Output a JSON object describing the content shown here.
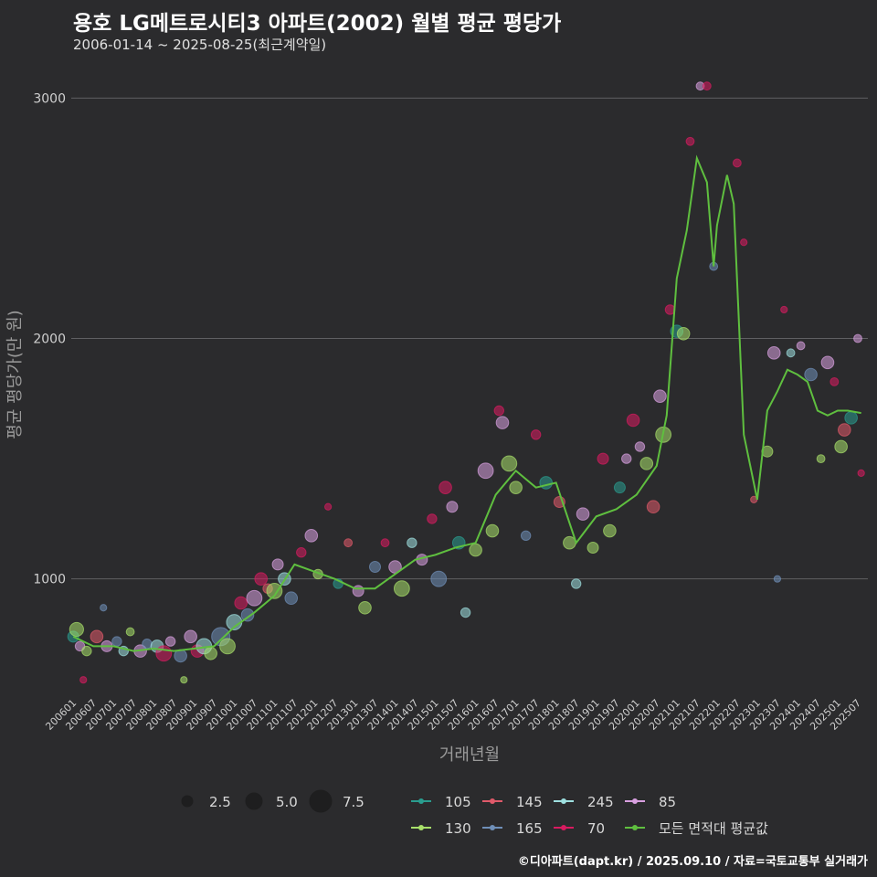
{
  "title": "용호 LG메트로시티3 아파트(2002) 월별 평균 평당가",
  "subtitle": "2006-01-14 ~ 2025-08-25(최근계약일)",
  "credit": "©디아파트(dapt.kr) / 2025.09.10 / 자료=국토교통부 실거래가",
  "chart_data": {
    "type": "scatter",
    "xlabel": "거래년월",
    "ylabel": "평균 평당가(만 원)",
    "ylim": [
      520,
      3180
    ],
    "yticks": [
      1000,
      2000,
      3000
    ],
    "grid": true,
    "legend_position": "bottom",
    "x_ticks": [
      "200601",
      "200607",
      "200701",
      "200707",
      "200801",
      "200807",
      "200901",
      "200907",
      "201001",
      "201007",
      "201101",
      "201107",
      "201201",
      "201207",
      "201301",
      "201307",
      "201401",
      "201407",
      "201501",
      "201507",
      "201601",
      "201607",
      "201701",
      "201707",
      "201801",
      "201807",
      "201901",
      "201907",
      "202001",
      "202007",
      "202101",
      "202107",
      "202201",
      "202207",
      "202301",
      "202307",
      "202401",
      "202407",
      "202501",
      "202507"
    ],
    "size_legend": [
      {
        "label": "2.5",
        "value": 2.5
      },
      {
        "label": "5.0",
        "value": 5.0
      },
      {
        "label": "7.5",
        "value": 7.5
      }
    ],
    "series": [
      {
        "name": "105",
        "color": "#2a9d8f"
      },
      {
        "name": "130",
        "color": "#a8e06a"
      },
      {
        "name": "145",
        "color": "#e05a6a"
      },
      {
        "name": "165",
        "color": "#6f8fb8"
      },
      {
        "name": "245",
        "color": "#9ee0e0"
      },
      {
        "name": "70",
        "color": "#d81b60"
      },
      {
        "name": "85",
        "color": "#d9a0e0"
      },
      {
        "name": "모든 면적대 평균값",
        "color": "#5fbf3f"
      }
    ],
    "average_line": {
      "x": [
        "2006-01",
        "2006-07",
        "2007-01",
        "2007-07",
        "2008-01",
        "2008-07",
        "2009-01",
        "2009-07",
        "2010-01",
        "2010-07",
        "2011-01",
        "2011-07",
        "2012-01",
        "2012-07",
        "2013-01",
        "2013-07",
        "2014-01",
        "2014-07",
        "2015-01",
        "2015-07",
        "2016-01",
        "2016-07",
        "2017-01",
        "2017-07",
        "2018-01",
        "2018-07",
        "2019-01",
        "2019-07",
        "2020-01",
        "2020-07",
        "2020-10",
        "2021-01",
        "2021-04",
        "2021-07",
        "2021-10",
        "2021-12",
        "2022-01",
        "2022-04",
        "2022-06",
        "2022-09",
        "2023-01",
        "2023-04",
        "2023-07",
        "2023-10",
        "2024-01",
        "2024-04",
        "2024-07",
        "2024-10",
        "2025-01",
        "2025-04",
        "2025-08"
      ],
      "y": [
        760,
        720,
        720,
        700,
        710,
        700,
        710,
        720,
        800,
        860,
        930,
        1060,
        1030,
        1000,
        960,
        960,
        1020,
        1080,
        1100,
        1130,
        1150,
        1350,
        1450,
        1380,
        1400,
        1150,
        1260,
        1290,
        1350,
        1470,
        1680,
        2250,
        2450,
        2750,
        2650,
        2300,
        2470,
        2680,
        2560,
        1600,
        1330,
        1700,
        1780,
        1870,
        1850,
        1820,
        1700,
        1680,
        1700,
        1700,
        1690
      ]
    },
    "points": [
      {
        "x": "2006-01",
        "y": 760,
        "s": "105",
        "v": 2.5
      },
      {
        "x": "2006-02",
        "y": 790,
        "s": "130",
        "v": 3.5
      },
      {
        "x": "2006-03",
        "y": 720,
        "s": "85",
        "v": 2.0
      },
      {
        "x": "2006-04",
        "y": 580,
        "s": "70",
        "v": 1.0
      },
      {
        "x": "2006-05",
        "y": 700,
        "s": "130",
        "v": 2.0
      },
      {
        "x": "2006-08",
        "y": 760,
        "s": "145",
        "v": 3.0
      },
      {
        "x": "2006-10",
        "y": 880,
        "s": "165",
        "v": 1.0
      },
      {
        "x": "2006-11",
        "y": 720,
        "s": "85",
        "v": 2.5
      },
      {
        "x": "2007-02",
        "y": 740,
        "s": "165",
        "v": 2.0
      },
      {
        "x": "2007-04",
        "y": 700,
        "s": "245",
        "v": 2.0
      },
      {
        "x": "2007-06",
        "y": 780,
        "s": "130",
        "v": 1.5
      },
      {
        "x": "2007-09",
        "y": 700,
        "s": "85",
        "v": 3.0
      },
      {
        "x": "2007-11",
        "y": 730,
        "s": "165",
        "v": 2.0
      },
      {
        "x": "2008-02",
        "y": 720,
        "s": "245",
        "v": 3.0
      },
      {
        "x": "2008-04",
        "y": 690,
        "s": "70",
        "v": 4.0
      },
      {
        "x": "2008-06",
        "y": 740,
        "s": "85",
        "v": 2.0
      },
      {
        "x": "2008-09",
        "y": 680,
        "s": "165",
        "v": 3.0
      },
      {
        "x": "2008-10",
        "y": 580,
        "s": "130",
        "v": 1.0
      },
      {
        "x": "2008-12",
        "y": 760,
        "s": "85",
        "v": 3.0
      },
      {
        "x": "2009-02",
        "y": 700,
        "s": "70",
        "v": 3.0
      },
      {
        "x": "2009-04",
        "y": 720,
        "s": "245",
        "v": 4.0
      },
      {
        "x": "2009-06",
        "y": 690,
        "s": "130",
        "v": 3.0
      },
      {
        "x": "2009-09",
        "y": 760,
        "s": "165",
        "v": 5.0
      },
      {
        "x": "2009-11",
        "y": 720,
        "s": "130",
        "v": 4.0
      },
      {
        "x": "2010-01",
        "y": 820,
        "s": "245",
        "v": 4.0
      },
      {
        "x": "2010-03",
        "y": 900,
        "s": "70",
        "v": 3.0
      },
      {
        "x": "2010-05",
        "y": 850,
        "s": "165",
        "v": 3.0
      },
      {
        "x": "2010-07",
        "y": 920,
        "s": "85",
        "v": 4.0
      },
      {
        "x": "2010-09",
        "y": 1000,
        "s": "70",
        "v": 3.0
      },
      {
        "x": "2010-11",
        "y": 960,
        "s": "145",
        "v": 2.0
      },
      {
        "x": "2011-01",
        "y": 950,
        "s": "130",
        "v": 4.0
      },
      {
        "x": "2011-02",
        "y": 1060,
        "s": "85",
        "v": 2.5
      },
      {
        "x": "2011-04",
        "y": 1000,
        "s": "245",
        "v": 3.0
      },
      {
        "x": "2011-06",
        "y": 920,
        "s": "165",
        "v": 3.0
      },
      {
        "x": "2011-09",
        "y": 1110,
        "s": "70",
        "v": 2.0
      },
      {
        "x": "2011-12",
        "y": 1180,
        "s": "85",
        "v": 3.0
      },
      {
        "x": "2012-02",
        "y": 1020,
        "s": "130",
        "v": 2.0
      },
      {
        "x": "2012-05",
        "y": 1300,
        "s": "70",
        "v": 1.0
      },
      {
        "x": "2012-08",
        "y": 980,
        "s": "105",
        "v": 2.0
      },
      {
        "x": "2012-11",
        "y": 1150,
        "s": "145",
        "v": 1.5
      },
      {
        "x": "2013-02",
        "y": 950,
        "s": "85",
        "v": 2.5
      },
      {
        "x": "2013-04",
        "y": 880,
        "s": "130",
        "v": 3.0
      },
      {
        "x": "2013-07",
        "y": 1050,
        "s": "165",
        "v": 2.5
      },
      {
        "x": "2013-10",
        "y": 1150,
        "s": "70",
        "v": 1.5
      },
      {
        "x": "2014-01",
        "y": 1050,
        "s": "85",
        "v": 3.0
      },
      {
        "x": "2014-03",
        "y": 960,
        "s": "130",
        "v": 4.0
      },
      {
        "x": "2014-06",
        "y": 1150,
        "s": "245",
        "v": 2.0
      },
      {
        "x": "2014-09",
        "y": 1080,
        "s": "85",
        "v": 2.5
      },
      {
        "x": "2014-12",
        "y": 1250,
        "s": "70",
        "v": 2.0
      },
      {
        "x": "2015-02",
        "y": 1000,
        "s": "165",
        "v": 4.0
      },
      {
        "x": "2015-04",
        "y": 1380,
        "s": "70",
        "v": 3.0
      },
      {
        "x": "2015-06",
        "y": 1300,
        "s": "85",
        "v": 2.5
      },
      {
        "x": "2015-08",
        "y": 1150,
        "s": "105",
        "v": 3.0
      },
      {
        "x": "2015-10",
        "y": 860,
        "s": "245",
        "v": 2.0
      },
      {
        "x": "2016-01",
        "y": 1120,
        "s": "130",
        "v": 3.0
      },
      {
        "x": "2016-04",
        "y": 1450,
        "s": "85",
        "v": 4.0
      },
      {
        "x": "2016-06",
        "y": 1200,
        "s": "130",
        "v": 3.0
      },
      {
        "x": "2016-08",
        "y": 1700,
        "s": "70",
        "v": 2.0
      },
      {
        "x": "2016-09",
        "y": 1650,
        "s": "85",
        "v": 3.0
      },
      {
        "x": "2016-11",
        "y": 1480,
        "s": "130",
        "v": 4.0
      },
      {
        "x": "2017-01",
        "y": 1380,
        "s": "130",
        "v": 3.0
      },
      {
        "x": "2017-04",
        "y": 1180,
        "s": "165",
        "v": 2.0
      },
      {
        "x": "2017-07",
        "y": 1600,
        "s": "70",
        "v": 2.0
      },
      {
        "x": "2017-10",
        "y": 1400,
        "s": "105",
        "v": 3.0
      },
      {
        "x": "2018-02",
        "y": 1320,
        "s": "145",
        "v": 2.5
      },
      {
        "x": "2018-05",
        "y": 1150,
        "s": "130",
        "v": 3.0
      },
      {
        "x": "2018-07",
        "y": 980,
        "s": "245",
        "v": 2.0
      },
      {
        "x": "2018-09",
        "y": 1270,
        "s": "85",
        "v": 3.0
      },
      {
        "x": "2018-12",
        "y": 1130,
        "s": "130",
        "v": 2.5
      },
      {
        "x": "2019-03",
        "y": 1500,
        "s": "70",
        "v": 2.5
      },
      {
        "x": "2019-05",
        "y": 1200,
        "s": "130",
        "v": 3.0
      },
      {
        "x": "2019-08",
        "y": 1380,
        "s": "105",
        "v": 2.5
      },
      {
        "x": "2019-10",
        "y": 1500,
        "s": "85",
        "v": 2.0
      },
      {
        "x": "2019-12",
        "y": 1660,
        "s": "70",
        "v": 3.0
      },
      {
        "x": "2020-02",
        "y": 1550,
        "s": "85",
        "v": 2.0
      },
      {
        "x": "2020-04",
        "y": 1480,
        "s": "130",
        "v": 3.0
      },
      {
        "x": "2020-06",
        "y": 1300,
        "s": "145",
        "v": 3.0
      },
      {
        "x": "2020-08",
        "y": 1760,
        "s": "85",
        "v": 3.0
      },
      {
        "x": "2020-09",
        "y": 1600,
        "s": "130",
        "v": 4.0
      },
      {
        "x": "2020-11",
        "y": 2120,
        "s": "70",
        "v": 2.0
      },
      {
        "x": "2021-01",
        "y": 2030,
        "s": "105",
        "v": 3.0
      },
      {
        "x": "2021-03",
        "y": 2020,
        "s": "130",
        "v": 3.0
      },
      {
        "x": "2021-05",
        "y": 2820,
        "s": "70",
        "v": 1.5
      },
      {
        "x": "2021-08",
        "y": 3050,
        "s": "85",
        "v": 1.5
      },
      {
        "x": "2021-10",
        "y": 3050,
        "s": "70",
        "v": 1.5
      },
      {
        "x": "2021-12",
        "y": 2300,
        "s": "165",
        "v": 1.5
      },
      {
        "x": "2022-07",
        "y": 2730,
        "s": "70",
        "v": 1.5
      },
      {
        "x": "2022-09",
        "y": 2400,
        "s": "70",
        "v": 1.0
      },
      {
        "x": "2022-12",
        "y": 1330,
        "s": "145",
        "v": 1.0
      },
      {
        "x": "2023-04",
        "y": 1530,
        "s": "130",
        "v": 2.5
      },
      {
        "x": "2023-06",
        "y": 1940,
        "s": "85",
        "v": 3.0
      },
      {
        "x": "2023-07",
        "y": 1000,
        "s": "165",
        "v": 1.0
      },
      {
        "x": "2023-09",
        "y": 2120,
        "s": "70",
        "v": 1.0
      },
      {
        "x": "2023-11",
        "y": 1940,
        "s": "245",
        "v": 1.5
      },
      {
        "x": "2024-02",
        "y": 1970,
        "s": "85",
        "v": 1.5
      },
      {
        "x": "2024-05",
        "y": 1850,
        "s": "165",
        "v": 3.0
      },
      {
        "x": "2024-08",
        "y": 1500,
        "s": "130",
        "v": 1.5
      },
      {
        "x": "2024-10",
        "y": 1900,
        "s": "85",
        "v": 3.0
      },
      {
        "x": "2024-12",
        "y": 1820,
        "s": "70",
        "v": 1.5
      },
      {
        "x": "2025-02",
        "y": 1550,
        "s": "130",
        "v": 3.0
      },
      {
        "x": "2025-03",
        "y": 1620,
        "s": "145",
        "v": 3.0
      },
      {
        "x": "2025-05",
        "y": 1670,
        "s": "105",
        "v": 3.0
      },
      {
        "x": "2025-07",
        "y": 2000,
        "s": "85",
        "v": 1.5
      },
      {
        "x": "2025-08",
        "y": 1440,
        "s": "70",
        "v": 1.0
      }
    ]
  }
}
